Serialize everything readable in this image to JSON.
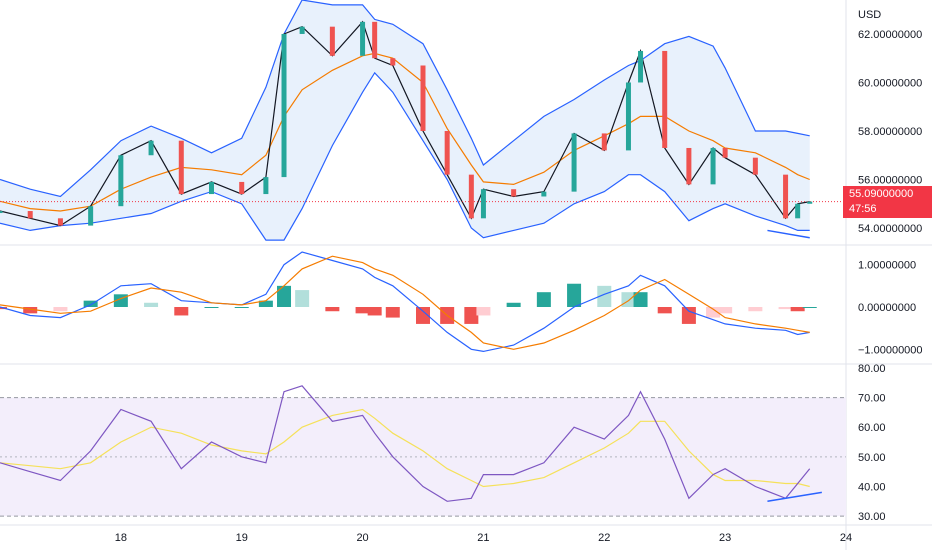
{
  "currency": "USD",
  "last_price": "55.09000000",
  "countdown": "47:56",
  "colors": {
    "up": "#26a69a",
    "down": "#ef5350",
    "band": "#2962ff",
    "band_fill": "#e8f1fc",
    "basis": "#f57c00",
    "macd_line": "#2962ff",
    "signal_line": "#f57c00",
    "rsi_line": "#7e57c2",
    "rsi_ma": "#f5e15a",
    "rsi_band": "#f3eefb",
    "trendline": "#2962ff",
    "price_line": "#f23645"
  },
  "price_axis_labels": [
    "62.00000000",
    "60.00000000",
    "58.00000000",
    "56.00000000",
    "54.00000000"
  ],
  "macd_axis_labels": [
    "1.00000000",
    "0.00000000",
    "−1.00000000"
  ],
  "rsi_axis_labels": [
    "80.00",
    "70.00",
    "60.00",
    "50.00",
    "40.00",
    "30.00"
  ],
  "x_axis_labels": [
    "18",
    "19",
    "20",
    "21",
    "22",
    "23",
    "24"
  ],
  "chart_data": {
    "type": "candlestick",
    "x_unit": "day",
    "price_range": [
      53.3,
      63.4
    ],
    "price": {
      "x": [
        17.0,
        17.25,
        17.5,
        17.75,
        18.0,
        18.25,
        18.5,
        18.75,
        19.0,
        19.2,
        19.35,
        19.5,
        19.75,
        20.0,
        20.1,
        20.25,
        20.5,
        20.7,
        20.9,
        21.0,
        21.25,
        21.5,
        21.75,
        22.0,
        22.2,
        22.3,
        22.5,
        22.7,
        22.9,
        23.0,
        23.25,
        23.5,
        23.6,
        23.7
      ],
      "close": [
        54.7,
        54.4,
        54.1,
        54.9,
        57.0,
        57.6,
        55.4,
        55.9,
        55.4,
        56.1,
        62.0,
        62.3,
        61.1,
        62.5,
        61.0,
        60.7,
        58.0,
        56.2,
        54.4,
        55.6,
        55.3,
        55.5,
        57.9,
        57.2,
        60.0,
        61.3,
        57.3,
        55.8,
        57.3,
        56.9,
        56.2,
        54.4,
        55.0,
        55.09
      ]
    },
    "bollinger": {
      "x": [
        17.0,
        17.25,
        17.5,
        17.75,
        18.0,
        18.25,
        18.5,
        18.75,
        19.0,
        19.2,
        19.35,
        19.5,
        19.75,
        20.0,
        20.1,
        20.25,
        20.5,
        20.7,
        20.9,
        21.0,
        21.25,
        21.5,
        21.75,
        22.0,
        22.2,
        22.3,
        22.5,
        22.7,
        22.9,
        23.0,
        23.25,
        23.5,
        23.6,
        23.7
      ],
      "upper": [
        56.0,
        55.6,
        55.3,
        56.4,
        57.6,
        58.2,
        57.7,
        57.1,
        57.7,
        59.8,
        62.0,
        63.4,
        63.2,
        63.2,
        62.6,
        62.4,
        61.6,
        59.7,
        57.7,
        56.6,
        57.6,
        58.6,
        59.3,
        60.1,
        60.7,
        60.9,
        61.6,
        61.9,
        61.5,
        60.6,
        58.0,
        58.0,
        57.9,
        57.8
      ],
      "basis": [
        55.1,
        54.8,
        54.7,
        54.9,
        55.6,
        56.1,
        56.5,
        56.4,
        56.2,
        57.0,
        58.6,
        59.7,
        60.5,
        61.1,
        61.2,
        61.0,
        60.0,
        58.1,
        56.6,
        55.9,
        55.8,
        56.3,
        57.2,
        57.8,
        58.3,
        58.6,
        58.6,
        58.0,
        57.6,
        57.3,
        57.1,
        56.5,
        56.2,
        56.0
      ],
      "lower": [
        54.2,
        53.9,
        54.1,
        54.2,
        54.4,
        54.6,
        55.1,
        55.5,
        55.0,
        53.5,
        53.5,
        54.8,
        57.4,
        59.6,
        60.4,
        59.6,
        57.6,
        56.0,
        54.0,
        53.6,
        53.9,
        54.2,
        55.0,
        55.5,
        56.2,
        56.2,
        55.5,
        54.3,
        54.8,
        55.0,
        54.5,
        54.1,
        53.9,
        53.9
      ]
    },
    "macd": {
      "x": [
        17.0,
        17.25,
        17.5,
        17.75,
        18.0,
        18.25,
        18.5,
        18.75,
        19.0,
        19.2,
        19.35,
        19.5,
        19.75,
        20.0,
        20.1,
        20.25,
        20.5,
        20.7,
        20.9,
        21.0,
        21.25,
        21.5,
        21.75,
        22.0,
        22.2,
        22.3,
        22.5,
        22.7,
        22.9,
        23.0,
        23.25,
        23.5,
        23.6,
        23.7
      ],
      "macd": [
        0.0,
        -0.2,
        -0.25,
        0.05,
        0.5,
        0.55,
        0.15,
        0.1,
        0.05,
        0.3,
        1.0,
        1.3,
        1.1,
        0.9,
        0.7,
        0.5,
        -0.1,
        -0.6,
        -1.0,
        -1.05,
        -0.9,
        -0.5,
        0.0,
        0.3,
        0.5,
        0.75,
        0.5,
        -0.1,
        -0.3,
        -0.4,
        -0.5,
        -0.55,
        -0.65,
        -0.6
      ],
      "signal": [
        0.05,
        -0.05,
        -0.15,
        -0.1,
        0.2,
        0.45,
        0.35,
        0.1,
        0.05,
        0.15,
        0.5,
        0.9,
        1.2,
        1.05,
        0.9,
        0.75,
        0.3,
        -0.2,
        -0.6,
        -0.85,
        -1.0,
        -0.85,
        -0.55,
        -0.2,
        0.15,
        0.4,
        0.65,
        0.3,
        -0.05,
        -0.25,
        -0.4,
        -0.5,
        -0.55,
        -0.6
      ],
      "histogram": [
        -0.05,
        -0.15,
        -0.1,
        0.15,
        0.3,
        0.1,
        -0.2,
        0.0,
        0.0,
        0.15,
        0.5,
        0.4,
        -0.1,
        -0.15,
        -0.2,
        -0.25,
        -0.4,
        -0.4,
        -0.4,
        -0.2,
        0.1,
        0.35,
        0.55,
        0.5,
        0.35,
        0.35,
        -0.15,
        -0.4,
        -0.25,
        -0.15,
        -0.1,
        -0.05,
        -0.1,
        0.0
      ]
    },
    "rsi": {
      "x": [
        17.0,
        17.25,
        17.5,
        17.75,
        18.0,
        18.25,
        18.5,
        18.75,
        19.0,
        19.2,
        19.35,
        19.5,
        19.75,
        20.0,
        20.1,
        20.25,
        20.5,
        20.7,
        20.9,
        21.0,
        21.25,
        21.5,
        21.75,
        22.0,
        22.2,
        22.3,
        22.5,
        22.7,
        22.9,
        23.0,
        23.25,
        23.5,
        23.6,
        23.7
      ],
      "rsi": [
        48,
        45,
        42,
        52,
        66,
        62,
        46,
        55,
        50,
        48,
        72,
        74,
        62,
        64,
        58,
        50,
        40,
        35,
        36,
        44,
        44,
        48,
        60,
        56,
        64,
        72,
        56,
        36,
        44,
        46,
        40,
        36,
        41,
        46
      ],
      "rsi_ma": [
        48,
        47,
        46,
        48,
        55,
        60,
        58,
        54,
        52,
        51,
        55,
        60,
        64,
        66,
        63,
        58,
        52,
        46,
        42,
        40,
        41,
        43,
        48,
        53,
        58,
        62,
        62,
        52,
        44,
        42,
        42,
        41,
        41,
        40
      ],
      "overbought": 70,
      "oversold": 30
    },
    "trendlines": [
      {
        "pane": "price",
        "x": [
          23.35,
          23.7
        ],
        "y": [
          53.9,
          53.6
        ]
      },
      {
        "pane": "rsi",
        "x": [
          23.35,
          23.8
        ],
        "y": [
          35,
          38
        ]
      }
    ],
    "ylim_price": [
      53.3,
      63.4
    ],
    "ylim_macd": [
      -1.3,
      1.3
    ],
    "ylim_rsi": [
      28,
      80
    ],
    "xlim": [
      17.0,
      24.0
    ]
  }
}
